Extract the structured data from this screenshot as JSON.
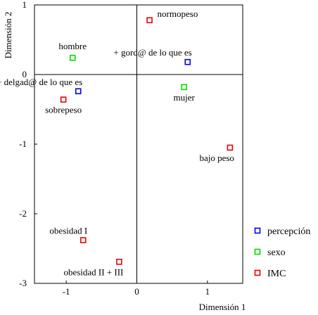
{
  "chart_data": {
    "type": "scatter",
    "title": "",
    "xlabel": "Dimensión 1",
    "ylabel": "Dimensión 2",
    "xlim": [
      -1.45,
      1.5
    ],
    "ylim": [
      -3,
      1
    ],
    "x_ticks": [
      {
        "value": -1,
        "label": "-1"
      },
      {
        "value": 0,
        "label": "0"
      },
      {
        "value": 1,
        "label": "1"
      }
    ],
    "y_ticks": [
      {
        "value": 1,
        "label": "1"
      },
      {
        "value": 0,
        "label": "0"
      },
      {
        "value": -1,
        "label": "-1"
      },
      {
        "value": -2,
        "label": "-2"
      },
      {
        "value": -3,
        "label": "-3"
      }
    ],
    "grid": false,
    "origin_lines": true,
    "legend_placement": "right",
    "series": [
      {
        "name": "percepción",
        "color": "#0000ee",
        "marker": "open-square",
        "points": [
          {
            "label": "+ gord@ de lo que es",
            "x": 0.72,
            "y": 0.18,
            "label_side": "top-left"
          },
          {
            "label": "+ delgad@ de lo que es",
            "x": -0.83,
            "y": -0.24,
            "label_side": "top-left"
          }
        ]
      },
      {
        "name": "sexo",
        "color": "#00dd00",
        "marker": "open-square",
        "points": [
          {
            "label": "hombre",
            "x": -0.91,
            "y": 0.24,
            "label_side": "top"
          },
          {
            "label": "mujer",
            "x": 0.67,
            "y": -0.18,
            "label_side": "bottom"
          }
        ]
      },
      {
        "name": "IMC",
        "color": "#ee0000",
        "marker": "open-square",
        "points": [
          {
            "label": "normopeso",
            "x": 0.18,
            "y": 0.78,
            "label_side": "top-right"
          },
          {
            "label": "sobrepeso",
            "x": -1.04,
            "y": -0.36,
            "label_side": "bottom"
          },
          {
            "label": "bajo peso",
            "x": 1.32,
            "y": -1.05,
            "label_side": "bottom-left"
          },
          {
            "label": "obesidad I",
            "x": -0.76,
            "y": -2.38,
            "label_side": "top-left"
          },
          {
            "label": "obesidad II + III",
            "x": -0.25,
            "y": -2.69,
            "label_side": "bottom-left"
          }
        ]
      }
    ]
  }
}
